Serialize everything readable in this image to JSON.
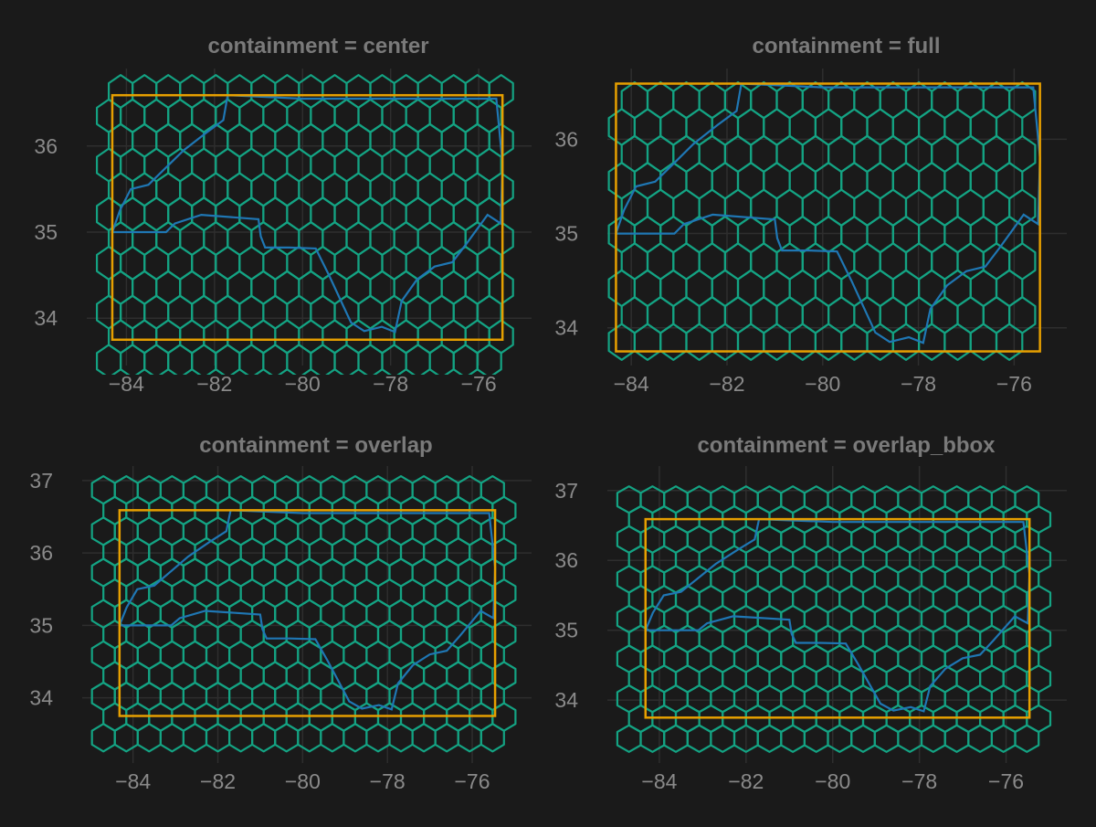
{
  "colors": {
    "background": "#1a1a1a",
    "grid": "#2e2e2e",
    "tick_text": "#8a8a8a",
    "title_text": "#7a7a7a",
    "hexagon": "#14a383",
    "state_outline": "#1f77b4",
    "bbox": "#e69f00"
  },
  "chart_data": [
    {
      "type": "line",
      "title": "containment = center",
      "xlim": [
        -84.9,
        -74.8
      ],
      "ylim": [
        33.45,
        36.9
      ],
      "xticks": [
        -84,
        -82,
        -80,
        -78,
        -76
      ],
      "yticks": [
        34,
        35,
        36
      ],
      "xtick_labels": [
        "−84",
        "−82",
        "−80",
        "−78",
        "−76"
      ],
      "ytick_labels": [
        "34",
        "35",
        "36"
      ],
      "grid": true,
      "bbox": {
        "xmin": -84.32,
        "xmax": -75.46,
        "ymin": 33.75,
        "ymax": 36.59
      },
      "hex_grid": {
        "x_range": [
          -84.4,
          -75.4
        ],
        "y_range": [
          33.5,
          36.7
        ],
        "count_approx": 160
      }
    },
    {
      "type": "line",
      "title": "containment = full",
      "xlim": [
        -84.5,
        -74.9
      ],
      "ylim": [
        33.6,
        36.75
      ],
      "xticks": [
        -84,
        -82,
        -80,
        -78,
        -76
      ],
      "yticks": [
        34,
        35,
        36
      ],
      "xtick_labels": [
        "−84",
        "−82",
        "−80",
        "−78",
        "−76"
      ],
      "ytick_labels": [
        "34",
        "35",
        "36"
      ],
      "grid": true,
      "bbox": {
        "xmin": -84.32,
        "xmax": -75.46,
        "ymin": 33.75,
        "ymax": 36.59
      },
      "hex_grid": {
        "x_range": [
          -84.2,
          -75.6
        ],
        "y_range": [
          33.85,
          36.5
        ],
        "count_approx": 120
      }
    },
    {
      "type": "line",
      "title": "containment = overlap",
      "xlim": [
        -85.2,
        -74.6
      ],
      "ylim": [
        33.1,
        37.2
      ],
      "xticks": [
        -84,
        -82,
        -80,
        -78,
        -76
      ],
      "yticks": [
        34,
        35,
        36,
        37
      ],
      "xtick_labels": [
        "−84",
        "−82",
        "−80",
        "−78",
        "−76"
      ],
      "ytick_labels": [
        "34",
        "35",
        "36",
        "37"
      ],
      "grid": true,
      "bbox": {
        "xmin": -84.32,
        "xmax": -75.46,
        "ymin": 33.75,
        "ymax": 36.59
      },
      "hex_grid": {
        "x_range": [
          -84.7,
          -75.1
        ],
        "y_range": [
          33.45,
          36.95
        ],
        "count_approx": 180
      }
    },
    {
      "type": "line",
      "title": "containment = overlap_bbox",
      "xlim": [
        -85.2,
        -74.6
      ],
      "ylim": [
        33.1,
        37.35
      ],
      "xticks": [
        -84,
        -82,
        -80,
        -78,
        -76
      ],
      "yticks": [
        34,
        35,
        36,
        37
      ],
      "xtick_labels": [
        "−84",
        "−82",
        "−80",
        "−78",
        "−76"
      ],
      "ytick_labels": [
        "34",
        "35",
        "36",
        "37"
      ],
      "grid": true,
      "bbox": {
        "xmin": -84.32,
        "xmax": -75.46,
        "ymin": 33.75,
        "ymax": 36.59
      },
      "hex_grid": {
        "x_range": [
          -84.7,
          -75.0
        ],
        "y_range": [
          33.45,
          37.05
        ],
        "count_approx": 200
      }
    }
  ],
  "state_outline": [
    [
      -84.32,
      35.0
    ],
    [
      -83.1,
      35.0
    ],
    [
      -82.9,
      35.1
    ],
    [
      -82.3,
      35.2
    ],
    [
      -81.0,
      35.15
    ],
    [
      -80.95,
      34.95
    ],
    [
      -80.85,
      34.82
    ],
    [
      -80.3,
      34.82
    ],
    [
      -79.7,
      34.81
    ],
    [
      -79.4,
      34.5
    ],
    [
      -78.9,
      33.95
    ],
    [
      -78.6,
      33.85
    ],
    [
      -78.2,
      33.9
    ],
    [
      -77.9,
      33.84
    ],
    [
      -77.75,
      34.2
    ],
    [
      -77.4,
      34.45
    ],
    [
      -77.0,
      34.6
    ],
    [
      -76.6,
      34.65
    ],
    [
      -76.3,
      34.85
    ],
    [
      -75.8,
      35.2
    ],
    [
      -75.5,
      35.1
    ],
    [
      -75.46,
      35.8
    ],
    [
      -75.6,
      36.55
    ],
    [
      -76.5,
      36.55
    ],
    [
      -78.0,
      36.55
    ],
    [
      -80.0,
      36.55
    ],
    [
      -81.7,
      36.59
    ],
    [
      -81.8,
      36.3
    ],
    [
      -82.2,
      36.15
    ],
    [
      -82.7,
      35.95
    ],
    [
      -83.1,
      35.75
    ],
    [
      -83.5,
      35.55
    ],
    [
      -83.9,
      35.5
    ],
    [
      -84.15,
      35.25
    ],
    [
      -84.32,
      35.0
    ]
  ]
}
